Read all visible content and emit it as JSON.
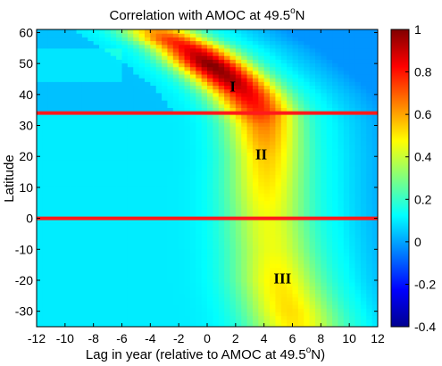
{
  "chart_data": {
    "type": "heatmap",
    "title": "Correlation with AMOC at 49.5",
    "title_sup": "o",
    "title_suffix": "N",
    "xlabel": "Lag in year (relative to AMOC at 49.5",
    "xlabel_sup": "o",
    "xlabel_suffix": "N)",
    "ylabel": "Latitude",
    "xlim": [
      -12,
      12
    ],
    "ylim": [
      -35,
      61
    ],
    "xticks": [
      -12,
      -10,
      -8,
      -6,
      -4,
      -2,
      0,
      2,
      4,
      6,
      8,
      10,
      12
    ],
    "yticks": [
      -30,
      -20,
      -10,
      0,
      10,
      20,
      30,
      40,
      50,
      60
    ],
    "colorbar": {
      "range": [
        -0.4,
        1
      ],
      "ticks": [
        1,
        0.8,
        0.6,
        0.4,
        0.2,
        0,
        -0.2,
        -0.4
      ],
      "colormap": "jet"
    },
    "ridge": {
      "description_values_lag_by_latitude": true,
      "latitude": [
        -35,
        -30,
        -20,
        -10,
        0,
        10,
        20,
        30,
        35,
        40,
        45,
        50,
        55,
        58,
        61
      ],
      "lag_of_max": [
        6.2,
        5.8,
        5.0,
        4.6,
        4.3,
        4.2,
        4.2,
        4.0,
        3.6,
        2.8,
        1.6,
        0.2,
        -1.2,
        -2.5,
        -3.5
      ],
      "max_correlation": [
        0.5,
        0.52,
        0.5,
        0.45,
        0.45,
        0.5,
        0.55,
        0.65,
        0.78,
        0.85,
        0.95,
        1.0,
        0.85,
        0.75,
        0.6
      ]
    },
    "background_correlation": 0.1,
    "reference_lines": {
      "latitudes": [
        34,
        0
      ],
      "color": "#ff1a1a"
    },
    "annotations": [
      {
        "text": "I",
        "lag": 1.8,
        "lat": 41
      },
      {
        "text": "II",
        "lag": 3.8,
        "lat": 19
      },
      {
        "text": "III",
        "lag": 5.3,
        "lat": -21
      }
    ]
  }
}
